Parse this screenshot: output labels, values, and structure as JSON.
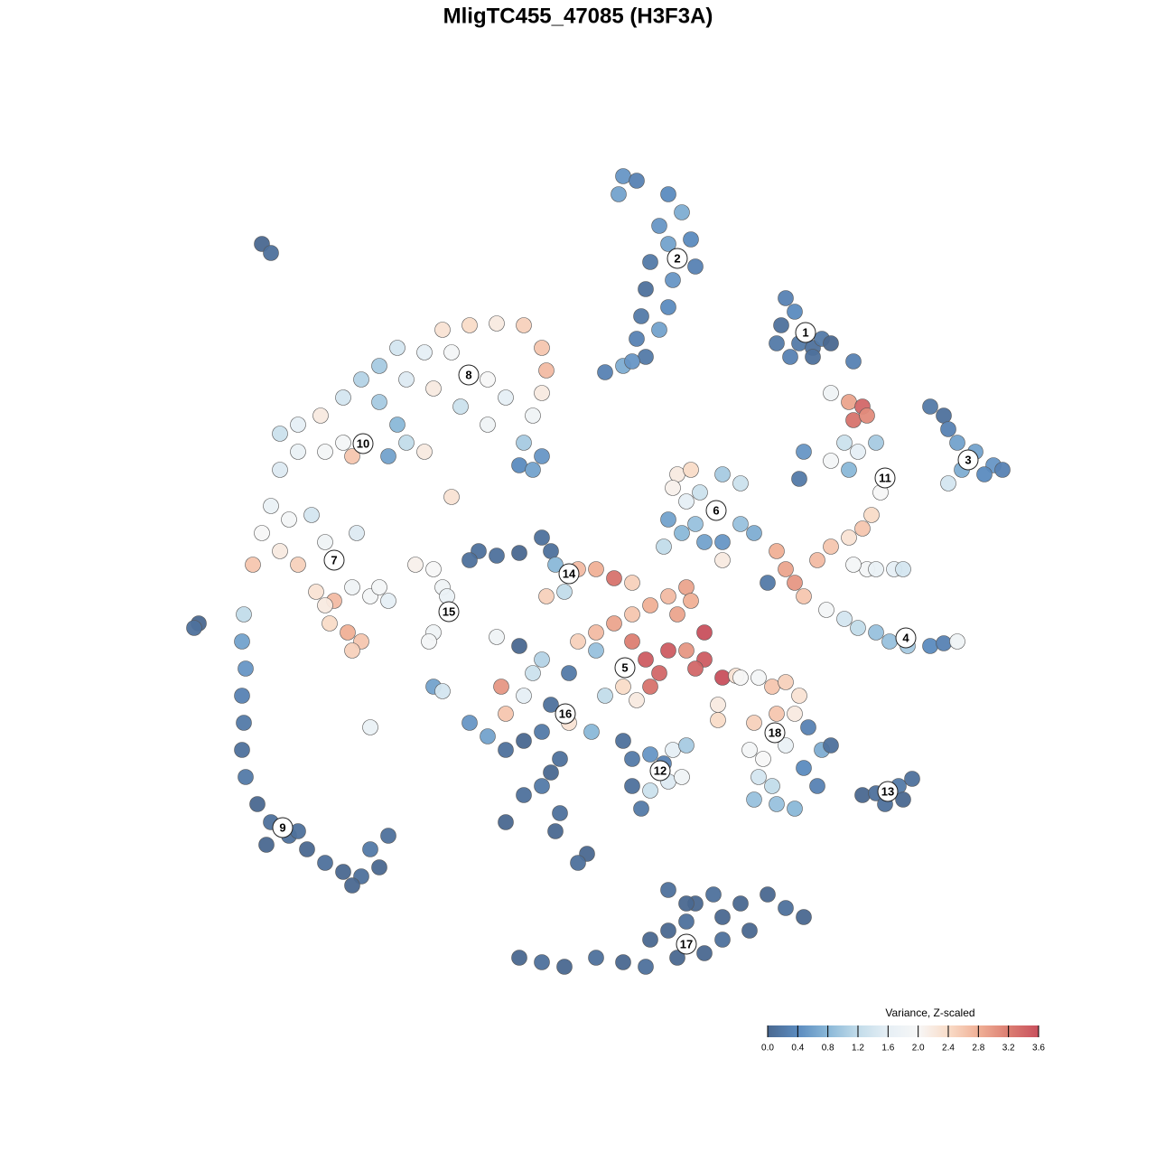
{
  "chart_data": {
    "type": "scatter",
    "title": "MligTC455_47085 (H3F3A)",
    "colorbar_title": "Variance, Z-scaled",
    "colorbar_lim": [
      0,
      3.6
    ],
    "colorbar_ticks": [
      {
        "value": 0,
        "label": "0.0"
      },
      0.4,
      0.8,
      1.2,
      1.6,
      {
        "value": 2,
        "label": "2.0"
      },
      2.4,
      2.8,
      3.2,
      3.6
    ],
    "colorscale": [
      "#4a6890",
      "#5b8bbf",
      "#8ab8d8",
      "#c2dcea",
      "#e6eff5",
      "#f7f7f7",
      "#f9dcc8",
      "#f0b096",
      "#dc7e72",
      "#c8505d"
    ],
    "series": [
      {
        "name": "1",
        "label_position": [
          25.2,
          27.2
        ],
        "x": [
          23,
          24,
          22.5,
          24.5,
          26,
          27,
          23.5,
          26,
          22,
          28
        ],
        "y": [
          31,
          29.5,
          28,
          26,
          25.5,
          26.5,
          24.5,
          24.5,
          26,
          26
        ],
        "values": [
          0.3,
          0.4,
          0.1,
          0.2,
          0.1,
          0.2,
          0.3,
          0.1,
          0.2,
          0.0
        ]
      },
      {
        "name": "2",
        "label_position": [
          11,
          35.4
        ],
        "x": [
          5,
          6.5,
          4.5,
          10,
          11.5,
          9,
          12.5,
          10,
          13,
          8,
          10.5,
          7.5,
          10,
          7,
          9,
          6.5,
          7.5,
          5,
          3,
          6
        ],
        "y": [
          44.5,
          44,
          42.5,
          42.5,
          40.5,
          39,
          37.5,
          37,
          34.5,
          35,
          33,
          32,
          30,
          29,
          27.5,
          26.5,
          24.5,
          23.5,
          22.8,
          24
        ],
        "values": [
          0.5,
          0.3,
          0.6,
          0.4,
          0.7,
          0.5,
          0.4,
          0.6,
          0.3,
          0.2,
          0.5,
          0.1,
          0.4,
          0.2,
          0.6,
          0.3,
          0.2,
          0.7,
          0.3,
          0.5
        ]
      },
      {
        "name": "3",
        "label_position": [
          43.2,
          13.1
        ],
        "x": [
          39,
          40.5,
          41,
          42,
          44,
          46,
          45,
          42.5,
          41,
          47
        ],
        "y": [
          19,
          18,
          16.5,
          15,
          14,
          12.5,
          11.5,
          12,
          10.5,
          12
        ],
        "values": [
          0.2,
          0.1,
          0.3,
          0.6,
          0.6,
          0.5,
          0.4,
          0.7,
          1.4,
          0.3
        ]
      },
      {
        "name": "4",
        "label_position": [
          36.3,
          -6.6
        ],
        "x": [
          22,
          23,
          24,
          25,
          27.5,
          29.5,
          31,
          33,
          34.5,
          36.5,
          39,
          40.5,
          42,
          32,
          35,
          21
        ],
        "y": [
          3,
          1,
          -0.5,
          -2,
          -3.5,
          -4.5,
          -5.5,
          -6,
          -7,
          -7.5,
          -7.5,
          -7.2,
          -7,
          1,
          1,
          -0.5
        ],
        "values": [
          2.8,
          2.9,
          3.0,
          2.6,
          1.9,
          1.4,
          1.2,
          0.9,
          0.9,
          1.0,
          0.4,
          0.3,
          1.8,
          1.9,
          1.6,
          0.2
        ]
      },
      {
        "name": "5",
        "label_position": [
          5.2,
          -9.9
        ],
        "x": [
          0,
          2,
          4,
          6,
          8,
          10,
          12,
          6,
          7.5,
          9,
          8,
          6.5,
          10,
          12,
          14,
          14,
          13,
          16,
          17.5,
          5,
          3,
          2,
          11,
          12.5
        ],
        "y": [
          -7,
          -6,
          -5,
          -4,
          -3,
          -2,
          -1,
          -7,
          -9,
          -10.5,
          -12,
          -13.5,
          -8,
          -8,
          -6,
          -9,
          -10,
          -11,
          -10.8,
          -12,
          -13,
          -8,
          -4,
          -2.5
        ],
        "values": [
          2.5,
          2.7,
          2.9,
          2.6,
          2.8,
          2.7,
          2.9,
          3.2,
          3.5,
          3.4,
          3.3,
          2.2,
          3.5,
          3.0,
          3.6,
          3.5,
          3.4,
          3.6,
          2.3,
          2.4,
          1.2,
          0.9,
          2.9,
          2.8
        ]
      },
      {
        "name": "6",
        "label_position": [
          15.3,
          7.5
        ],
        "x": [
          11,
          12.5,
          10.5,
          12,
          13.5,
          16,
          18,
          10,
          11.5,
          14,
          16,
          18,
          19.5,
          13,
          9.5,
          16
        ],
        "y": [
          11.5,
          12,
          10,
          8.5,
          9.5,
          11.5,
          10.5,
          6.5,
          5,
          4,
          4,
          6,
          5,
          6,
          3.5,
          2
        ],
        "values": [
          2.2,
          2.4,
          2.1,
          1.6,
          1.3,
          1.0,
          1.3,
          0.6,
          0.8,
          0.6,
          0.5,
          0.9,
          0.7,
          0.9,
          1.2,
          2.2
        ]
      },
      {
        "name": "7",
        "label_position": [
          -27,
          2
        ],
        "x": [
          -34,
          -32,
          -29.5,
          -35,
          -33,
          -36,
          -31,
          -28,
          -24.5,
          -29,
          -27,
          -25,
          -23,
          -22,
          -27.5,
          -25.5,
          -24,
          -25,
          -28,
          -21
        ],
        "y": [
          8,
          6.5,
          7,
          5,
          3,
          1.5,
          1.5,
          4,
          5,
          -1.5,
          -2.5,
          -1,
          -2,
          -1,
          -5,
          -6,
          -7,
          -8,
          -3,
          -2.5
        ],
        "values": [
          1.7,
          1.9,
          1.4,
          2.0,
          2.2,
          2.6,
          2.5,
          1.8,
          1.5,
          2.3,
          2.7,
          1.8,
          1.9,
          1.9,
          2.4,
          2.8,
          2.6,
          2.5,
          2.2,
          1.6
        ]
      },
      {
        "name": "8",
        "label_position": [
          -12.1,
          22.5
        ],
        "x": [
          -15,
          -12,
          -9,
          -6,
          -4,
          -3.5,
          -4,
          -5,
          -6,
          -4,
          -8,
          -10,
          -14,
          -17,
          -20,
          -22,
          -19,
          -16,
          -13,
          -10,
          -6.5,
          -5
        ],
        "y": [
          27.5,
          28,
          28.2,
          28,
          25.5,
          23,
          20.5,
          18,
          15,
          13.5,
          20,
          22,
          25,
          25,
          25.5,
          23.5,
          22,
          21,
          19,
          17,
          12.5,
          12
        ],
        "values": [
          2.3,
          2.4,
          2.2,
          2.5,
          2.6,
          2.7,
          2.2,
          1.8,
          1.0,
          0.5,
          1.6,
          2.0,
          1.9,
          1.6,
          1.4,
          1.0,
          1.5,
          2.2,
          1.3,
          1.8,
          0.4,
          0.6
        ]
      },
      {
        "name": "9",
        "label_position": [
          -32.7,
          -27.6
        ],
        "x": [
          -37,
          -37.2,
          -36.8,
          -37.2,
          -37,
          -37.2,
          -36.8,
          -35.5,
          -34,
          -32,
          -30,
          -28,
          -26,
          -24,
          -22,
          -21,
          -23,
          -25,
          -31,
          -34.5,
          -35,
          -34,
          -42,
          -42.5
        ],
        "y": [
          -4,
          -7,
          -10,
          -13,
          -16,
          -19,
          -22,
          -25,
          -27,
          -28.5,
          -30,
          -31.5,
          -32.5,
          -33,
          -32,
          -28.5,
          -30,
          -34,
          -28,
          -29.5,
          37,
          36,
          -5,
          -5.5
        ],
        "values": [
          1.2,
          0.6,
          0.5,
          0.3,
          0.2,
          0.1,
          0.2,
          0.0,
          0.1,
          0.1,
          0.0,
          0.1,
          0.0,
          0.1,
          0.0,
          0.1,
          0.2,
          0.0,
          0.1,
          0.0,
          0.0,
          0.1,
          0.0,
          0.1
        ]
      },
      {
        "name": "10",
        "label_position": [
          -23.8,
          14.9
        ],
        "x": [
          -33,
          -31,
          -28.5,
          -26,
          -24,
          -22,
          -20,
          -19,
          -21,
          -25,
          -28,
          -31,
          -33,
          -26,
          -17,
          -14
        ],
        "y": [
          16,
          17,
          18,
          20,
          22,
          19.5,
          17,
          15,
          13.5,
          13.5,
          14,
          14,
          12,
          15,
          14,
          9
        ],
        "values": [
          1.3,
          1.6,
          2.2,
          1.4,
          1.1,
          1.0,
          0.8,
          1.2,
          0.6,
          2.6,
          1.9,
          1.7,
          1.5,
          1.9,
          2.2,
          2.3
        ]
      },
      {
        "name": "11",
        "label_position": [
          34,
          11.1
        ],
        "x": [
          28,
          30,
          31.5,
          30.5,
          32,
          29.5,
          31,
          33,
          28,
          30,
          25,
          24.5,
          33.5,
          32.5,
          31.5,
          30,
          28,
          26.5,
          30.5,
          33,
          36,
          30.5
        ],
        "y": [
          20.5,
          19.5,
          19,
          17.5,
          18,
          15,
          14,
          15,
          13,
          12,
          14,
          11,
          9.5,
          7,
          5.5,
          4.5,
          3.5,
          2,
          1.5,
          1,
          1,
          24
        ],
        "values": [
          1.8,
          2.9,
          3.4,
          3.3,
          3.1,
          1.3,
          1.6,
          1.0,
          1.9,
          0.8,
          0.5,
          0.2,
          2.0,
          2.4,
          2.6,
          2.3,
          2.6,
          2.7,
          1.9,
          1.7,
          1.4,
          0.3
        ]
      },
      {
        "name": "12",
        "label_position": [
          9.1,
          -21.3
        ],
        "x": [
          5,
          6,
          8,
          10.5,
          12,
          6,
          8,
          10,
          11.5,
          7,
          9.5
        ],
        "y": [
          -18,
          -20,
          -19.5,
          -19,
          -18.5,
          -23,
          -23.5,
          -22.5,
          -22,
          -25.5,
          -20.5
        ],
        "values": [
          0.1,
          0.2,
          0.5,
          1.6,
          1.0,
          0.1,
          1.3,
          1.5,
          1.8,
          0.2,
          0.3
        ]
      },
      {
        "name": "13",
        "label_position": [
          34.3,
          -23.6
        ],
        "x": [
          31.5,
          33,
          35.5,
          37,
          36,
          34
        ],
        "y": [
          -24,
          -23.8,
          -23,
          -22.2,
          -24.5,
          -25
        ],
        "values": [
          0.0,
          0.1,
          0.2,
          0.1,
          0.0,
          0.1
        ]
      },
      {
        "name": "14",
        "label_position": [
          -1,
          0.5
        ],
        "x": [
          -11,
          -9,
          -6.5,
          -4,
          -3,
          -2.5,
          0,
          2,
          4,
          6,
          -3.5,
          -1.5,
          -12
        ],
        "y": [
          3,
          2.5,
          2.8,
          4.5,
          3,
          1.5,
          1,
          1,
          0,
          -0.5,
          -2,
          -1.5,
          2
        ],
        "values": [
          0.1,
          0.1,
          0.0,
          0.1,
          0.1,
          0.8,
          2.7,
          2.8,
          3.3,
          2.5,
          2.5,
          1.2,
          0.1
        ]
      },
      {
        "name": "15",
        "label_position": [
          -14.3,
          -3.7
        ],
        "x": [
          -18,
          -16,
          -15,
          -14.5,
          -16,
          -16.5,
          -9,
          -23,
          -16,
          -15
        ],
        "y": [
          1.5,
          1,
          -1,
          -2,
          -6,
          -7,
          -6.5,
          -16.5,
          -12,
          -12.5
        ],
        "values": [
          2.1,
          2.0,
          1.8,
          1.7,
          1.8,
          1.9,
          1.8,
          1.7,
          0.6,
          1.4
        ]
      },
      {
        "name": "16",
        "label_position": [
          -1.4,
          -15
        ],
        "x": [
          -12,
          -10,
          -8,
          -6,
          -4,
          -3,
          -6,
          -5,
          -8.5,
          -1,
          -2,
          -3,
          -4,
          -6,
          -8,
          -2,
          -2.5,
          1,
          0,
          -8,
          -4,
          -6.5,
          -1,
          1.5
        ],
        "y": [
          -16,
          -17.5,
          -19,
          -18,
          -17,
          -14,
          -13,
          -10.5,
          -12,
          -16,
          -20,
          -21.5,
          -23,
          -24,
          -27,
          -26,
          -28,
          -30.5,
          -31.5,
          -15,
          -9,
          -7.5,
          -10.5,
          -17
        ],
        "values": [
          0.5,
          0.6,
          0.1,
          0.0,
          0.2,
          0.1,
          1.6,
          1.3,
          3.0,
          2.3,
          0.1,
          0.0,
          0.2,
          0.1,
          0.0,
          0.1,
          0.0,
          0.0,
          0.1,
          2.6,
          1.1,
          0.0,
          0.2,
          0.8
        ]
      },
      {
        "name": "17",
        "label_position": [
          12,
          -40.5
        ],
        "x": [
          -6.5,
          -4,
          -1.5,
          2,
          5,
          7.5,
          8,
          10,
          12,
          13,
          15,
          18,
          21,
          23,
          25,
          19,
          16,
          14,
          11,
          10,
          12,
          16
        ],
        "y": [
          -42,
          -42.5,
          -43,
          -42,
          -42.5,
          -43,
          -40,
          -39,
          -38,
          -36,
          -35,
          -36,
          -35,
          -36.5,
          -37.5,
          -39,
          -40,
          -41.5,
          -42,
          -34.5,
          -36,
          -37.5
        ],
        "values": [
          0.0,
          0.1,
          0.0,
          0.1,
          0.0,
          0.1,
          0.0,
          0.0,
          0.1,
          0.0,
          0.1,
          0.0,
          0.0,
          0.1,
          0.0,
          0.0,
          0.1,
          0.0,
          0.0,
          0.1,
          0.0,
          0.0
        ]
      },
      {
        "name": "18",
        "label_position": [
          21.8,
          -17.1
        ],
        "x": [
          18,
          20,
          21.5,
          23,
          24.5,
          24,
          22,
          19.5,
          19,
          20.5,
          23,
          25.5,
          27,
          25,
          26.5,
          24,
          22,
          19.5,
          20,
          21.5,
          28,
          15.5,
          15.5
        ],
        "y": [
          -11,
          -11,
          -12,
          -11.5,
          -13,
          -15,
          -15,
          -16,
          -19,
          -20,
          -18.5,
          -16.5,
          -19,
          -21,
          -23,
          -25.5,
          -25,
          -24.5,
          -22,
          -23,
          -18.5,
          -14,
          -15.7
        ],
        "values": [
          2.0,
          1.9,
          2.6,
          2.5,
          2.3,
          2.2,
          2.6,
          2.5,
          1.9,
          2.0,
          1.7,
          0.3,
          0.7,
          0.4,
          0.3,
          0.8,
          0.9,
          0.9,
          1.4,
          1.2,
          0.1,
          2.2,
          2.4
        ]
      }
    ]
  }
}
